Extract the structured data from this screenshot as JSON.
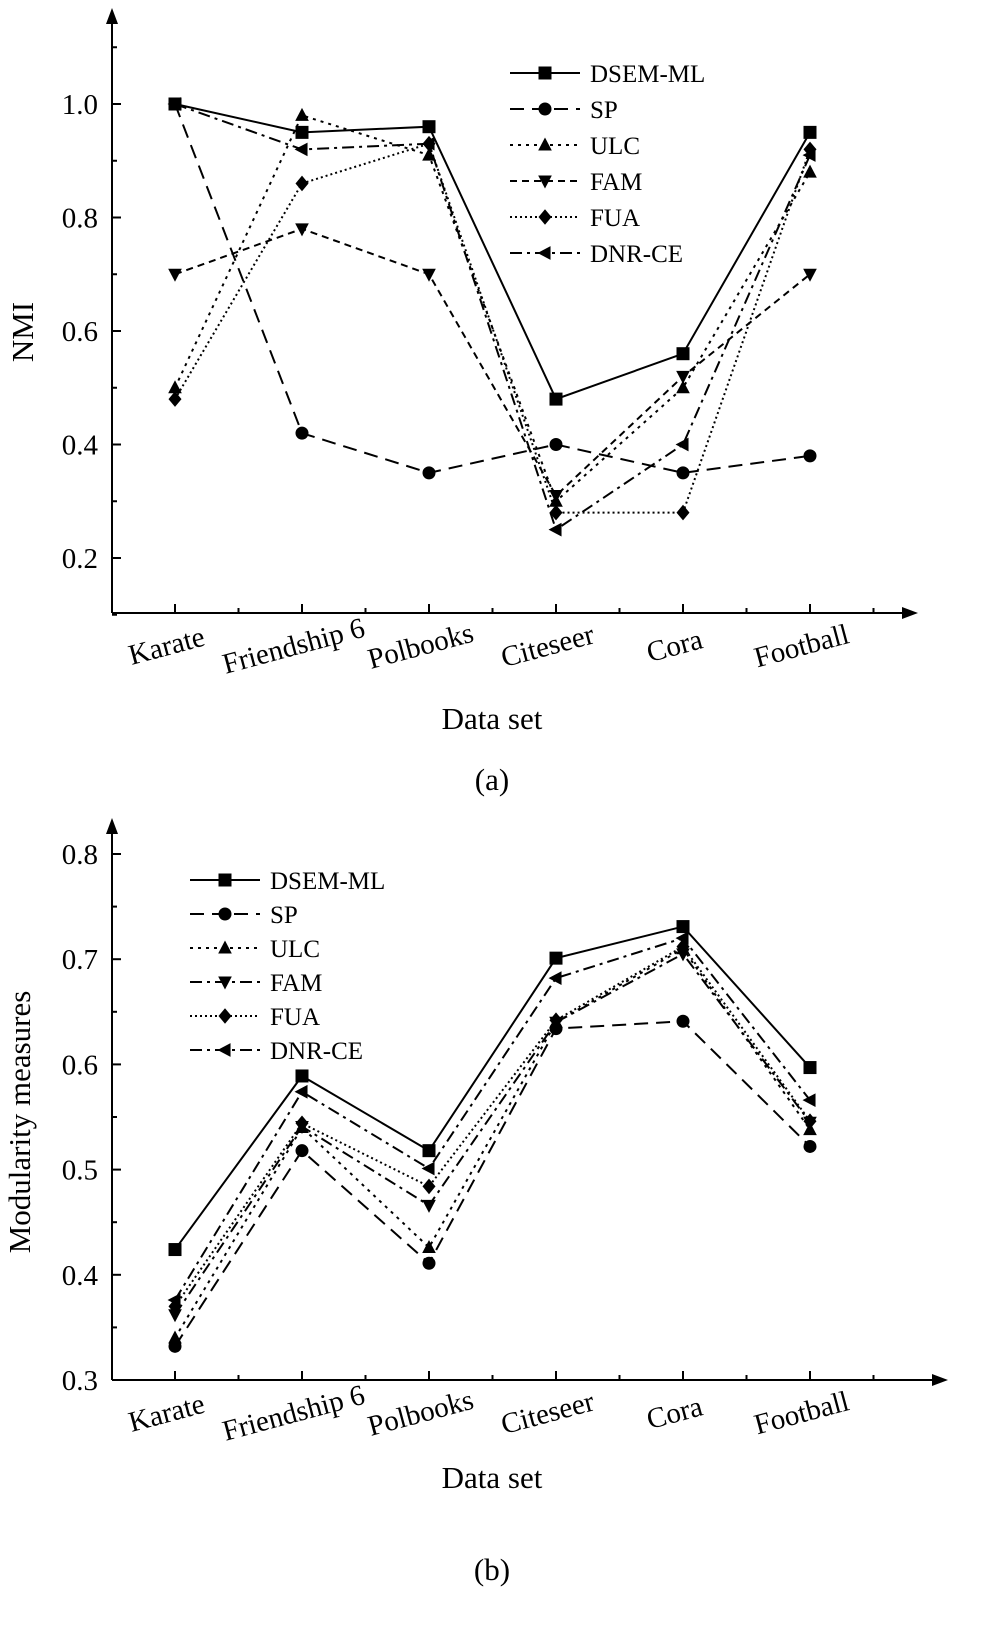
{
  "chart_data": [
    {
      "type": "line",
      "panel_label": "(a)",
      "xlabel": "Data set",
      "ylabel": "NMI",
      "ylim": [
        0.1,
        1.15
      ],
      "y_ticks": [
        "0.2",
        "0.4",
        "0.6",
        "0.8",
        "1.0"
      ],
      "categories": [
        "Karate",
        "Friendship 6",
        "Polbooks",
        "Citeseer",
        "Cora",
        "Football"
      ],
      "legend_position": "top-right",
      "series": [
        {
          "name": "DSEM-ML",
          "marker": "square",
          "dash": "solid",
          "values": [
            1.0,
            0.95,
            0.96,
            0.48,
            0.56,
            0.95
          ]
        },
        {
          "name": "SP",
          "marker": "circle",
          "dash": "dashed",
          "values": [
            1.0,
            0.42,
            0.35,
            0.4,
            0.35,
            0.38
          ]
        },
        {
          "name": "ULC",
          "marker": "triangle-up",
          "dash": "dotted",
          "values": [
            0.5,
            0.98,
            0.91,
            0.3,
            0.5,
            0.88
          ]
        },
        {
          "name": "FAM",
          "marker": "triangle-down",
          "dash": "short-dash",
          "values": [
            0.7,
            0.78,
            0.7,
            0.31,
            0.52,
            0.7
          ]
        },
        {
          "name": "FUA",
          "marker": "diamond",
          "dash": "fine-dot",
          "values": [
            0.48,
            0.86,
            0.93,
            0.28,
            0.28,
            0.92
          ]
        },
        {
          "name": "DNR-CE",
          "marker": "triangle-left",
          "dash": "dash-dot",
          "values": [
            1.0,
            0.92,
            0.93,
            0.25,
            0.4,
            0.91
          ]
        }
      ]
    },
    {
      "type": "line",
      "panel_label": "(b)",
      "xlabel": "Data set",
      "ylabel": "Modularity measures",
      "ylim": [
        0.3,
        0.84
      ],
      "y_ticks": [
        "0.3",
        "0.4",
        "0.5",
        "0.6",
        "0.7",
        "0.8"
      ],
      "categories": [
        "Karate",
        "Friendship 6",
        "Polbooks",
        "Citeseer",
        "Cora",
        "Football"
      ],
      "legend_position": "top-left",
      "series": [
        {
          "name": "DSEM-ML",
          "marker": "square",
          "dash": "solid",
          "values": [
            0.424,
            0.589,
            0.518,
            0.701,
            0.731,
            0.597
          ]
        },
        {
          "name": "SP",
          "marker": "circle",
          "dash": "dashed",
          "values": [
            0.332,
            0.518,
            0.411,
            0.634,
            0.641,
            0.522
          ]
        },
        {
          "name": "ULC",
          "marker": "triangle-up",
          "dash": "dotted",
          "values": [
            0.34,
            0.54,
            0.426,
            0.64,
            0.71,
            0.538
          ]
        },
        {
          "name": "FAM",
          "marker": "triangle-down",
          "dash": "dash-dot",
          "values": [
            0.362,
            0.541,
            0.466,
            0.64,
            0.705,
            0.545
          ]
        },
        {
          "name": "FUA",
          "marker": "diamond",
          "dash": "fine-dot",
          "values": [
            0.37,
            0.544,
            0.484,
            0.642,
            0.712,
            0.546
          ]
        },
        {
          "name": "DNR-CE",
          "marker": "triangle-left",
          "dash": "dash-dot",
          "values": [
            0.376,
            0.574,
            0.501,
            0.682,
            0.72,
            0.566
          ]
        }
      ]
    }
  ]
}
